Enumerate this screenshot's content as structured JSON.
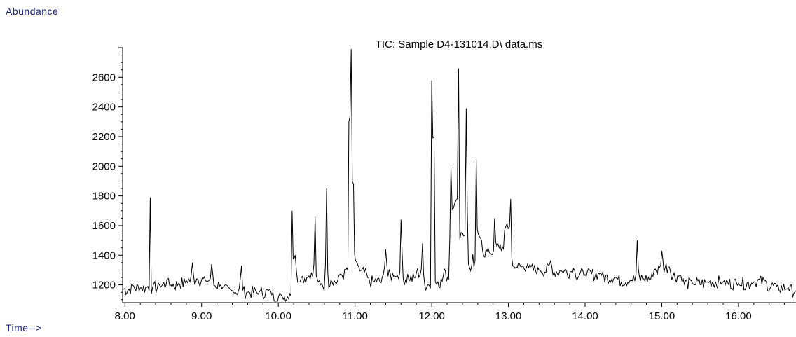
{
  "chart_data": {
    "type": "line",
    "title": "TIC: Sample D4-131014.D\\ data.ms",
    "ylabel": "Abundance",
    "xlabel": "Time-->",
    "xlim": [
      7.97,
      16.75
    ],
    "ylim": [
      1080,
      2800
    ],
    "x_ticks": [
      8.0,
      9.0,
      10.0,
      11.0,
      12.0,
      13.0,
      14.0,
      15.0,
      16.0
    ],
    "x_tick_labels": [
      "8.00",
      "9.00",
      "10.00",
      "11.00",
      "12.00",
      "13.00",
      "14.00",
      "15.00",
      "16.00"
    ],
    "y_ticks": [
      1200,
      1400,
      1600,
      1800,
      2000,
      2200,
      2400,
      2600
    ],
    "y_tick_labels": [
      "1200",
      "1400",
      "1600",
      "1800",
      "2000",
      "2200",
      "2400",
      "2600"
    ],
    "grid": false,
    "series": [
      {
        "color": "#000000",
        "x": [
          7.97,
          8.1,
          8.2,
          8.3,
          8.33,
          8.36,
          8.45,
          8.55,
          8.6,
          8.7,
          8.8,
          8.88,
          8.95,
          9.05,
          9.13,
          9.25,
          9.4,
          9.52,
          9.6,
          9.75,
          9.9,
          10.05,
          10.15,
          10.18,
          10.22,
          10.3,
          10.4,
          10.48,
          10.55,
          10.63,
          10.7,
          10.8,
          10.88,
          10.92,
          10.95,
          10.98,
          11.05,
          11.15,
          11.25,
          11.4,
          11.52,
          11.6,
          11.7,
          11.8,
          11.88,
          11.95,
          12.0,
          12.03,
          12.08,
          12.15,
          12.25,
          12.3,
          12.35,
          12.4,
          12.45,
          12.55,
          12.58,
          12.65,
          12.75,
          12.82,
          12.88,
          12.95,
          13.03,
          13.1,
          13.25,
          13.4,
          13.55,
          13.7,
          13.85,
          14.0,
          14.2,
          14.4,
          14.6,
          14.68,
          14.75,
          14.9,
          15.0,
          15.1,
          15.25,
          15.4,
          15.6,
          15.8,
          16.0,
          16.2,
          16.35,
          16.5,
          16.65,
          16.75
        ],
        "y": [
          1170,
          1200,
          1180,
          1190,
          1790,
          1180,
          1200,
          1240,
          1200,
          1210,
          1230,
          1350,
          1240,
          1230,
          1340,
          1200,
          1160,
          1330,
          1150,
          1150,
          1160,
          1120,
          1140,
          1700,
          1400,
          1250,
          1260,
          1660,
          1200,
          1850,
          1220,
          1270,
          1300,
          2300,
          2790,
          1880,
          1320,
          1280,
          1220,
          1440,
          1260,
          1640,
          1240,
          1280,
          1480,
          1200,
          2580,
          2200,
          1220,
          1260,
          1990,
          1750,
          2660,
          1550,
          2390,
          1320,
          2050,
          1500,
          1420,
          1650,
          1450,
          1570,
          1780,
          1320,
          1340,
          1300,
          1360,
          1290,
          1310,
          1270,
          1280,
          1250,
          1230,
          1500,
          1240,
          1300,
          1430,
          1320,
          1260,
          1210,
          1220,
          1220,
          1210,
          1220,
          1230,
          1190,
          1180,
          1160
        ]
      }
    ]
  }
}
